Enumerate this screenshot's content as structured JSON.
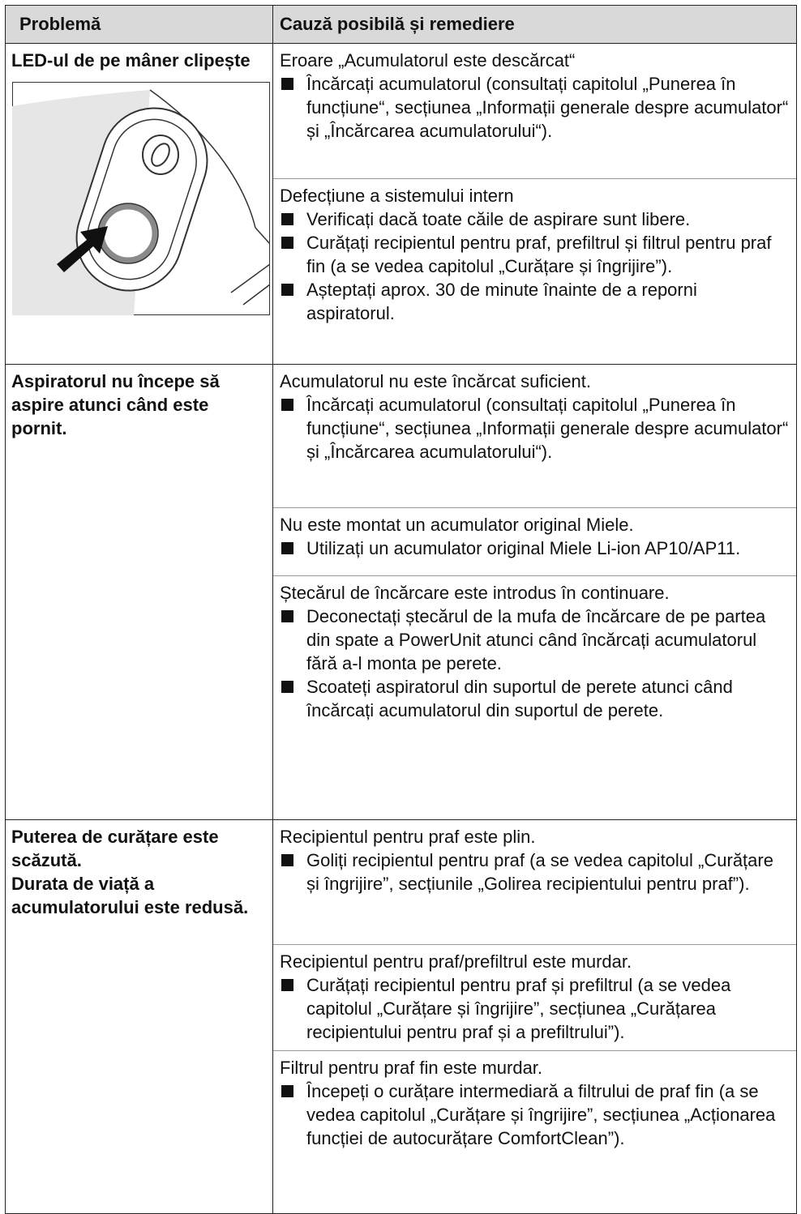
{
  "header": {
    "problem": "Problemă",
    "cause": "Cauză posibilă și remediere"
  },
  "rows": [
    {
      "problem": [
        "LED-ul de pe mâner clipește"
      ],
      "causes": [
        {
          "title": "Eroare „Acumulatorul este descărcat“",
          "steps": [
            "Încărcați acumulatorul (consultați capitolul „Punerea în funcțiune“, secțiunea „Informații generale despre acumulator“ și „Încărcarea acumulatorului“)."
          ]
        },
        {
          "title": "Defecțiune a sistemului intern",
          "steps": [
            "Verificați dacă toate căile de aspirare sunt libere.",
            "Curățați recipientul pentru praf, prefiltrul și filtrul pentru praf fin (a se vedea capitolul „Curățare și îngrijire”).",
            "Așteptați aprox. 30 de minute înainte de a reporni aspiratorul."
          ]
        }
      ]
    },
    {
      "problem": [
        "Aspiratorul nu începe să aspire atunci când este pornit."
      ],
      "causes": [
        {
          "title": "Acumulatorul nu este încărcat suficient.",
          "steps": [
            "Încărcați acumulatorul (consultați capitolul „Punerea în funcțiune“, secțiunea „Informații generale despre acumulator“ și „Încărcarea acumulatorului“)."
          ]
        },
        {
          "title": "Nu este montat un acumulator original Miele.",
          "steps": [
            "Utilizați un acumulator original Miele Li-ion AP10/AP11."
          ]
        },
        {
          "title": "Ștecărul de încărcare este introdus în continuare.",
          "steps": [
            "Deconectați ștecărul de la mufa de încărcare de pe partea din spate a PowerUnit atunci când încărcați acumulatorul fără a-l monta pe perete.",
            "Scoateți aspiratorul din suportul de perete atunci când încărcați acumulatorul din suportul de perete."
          ]
        }
      ]
    },
    {
      "problem": [
        "Puterea de curățare este scăzută.",
        "Durata de viață a acumulatorului este redusă."
      ],
      "causes": [
        {
          "title": "Recipientul pentru praf este plin.",
          "steps": [
            "Goliți recipientul pentru praf (a se vedea capitolul „Curățare și îngrijire”, secțiunile „Golirea recipientului pentru praf”)."
          ]
        },
        {
          "title": "Recipientul pentru praf/prefiltrul este murdar.",
          "steps": [
            "Curățați recipientul pentru praf și prefiltrul (a se vedea capitolul „Curățare și îngrijire”, secțiunea „Curățarea recipientului pentru praf și a prefiltrului”)."
          ]
        },
        {
          "title": "Filtrul pentru praf fin este murdar.",
          "steps": [
            "Începeți o curățare intermediară a filtrului de praf fin (a se vedea capitolul „Curățare și îngrijire”, secțiunea „Acționarea funcției de autocurățare ComfortClean”)."
          ]
        }
      ]
    }
  ]
}
